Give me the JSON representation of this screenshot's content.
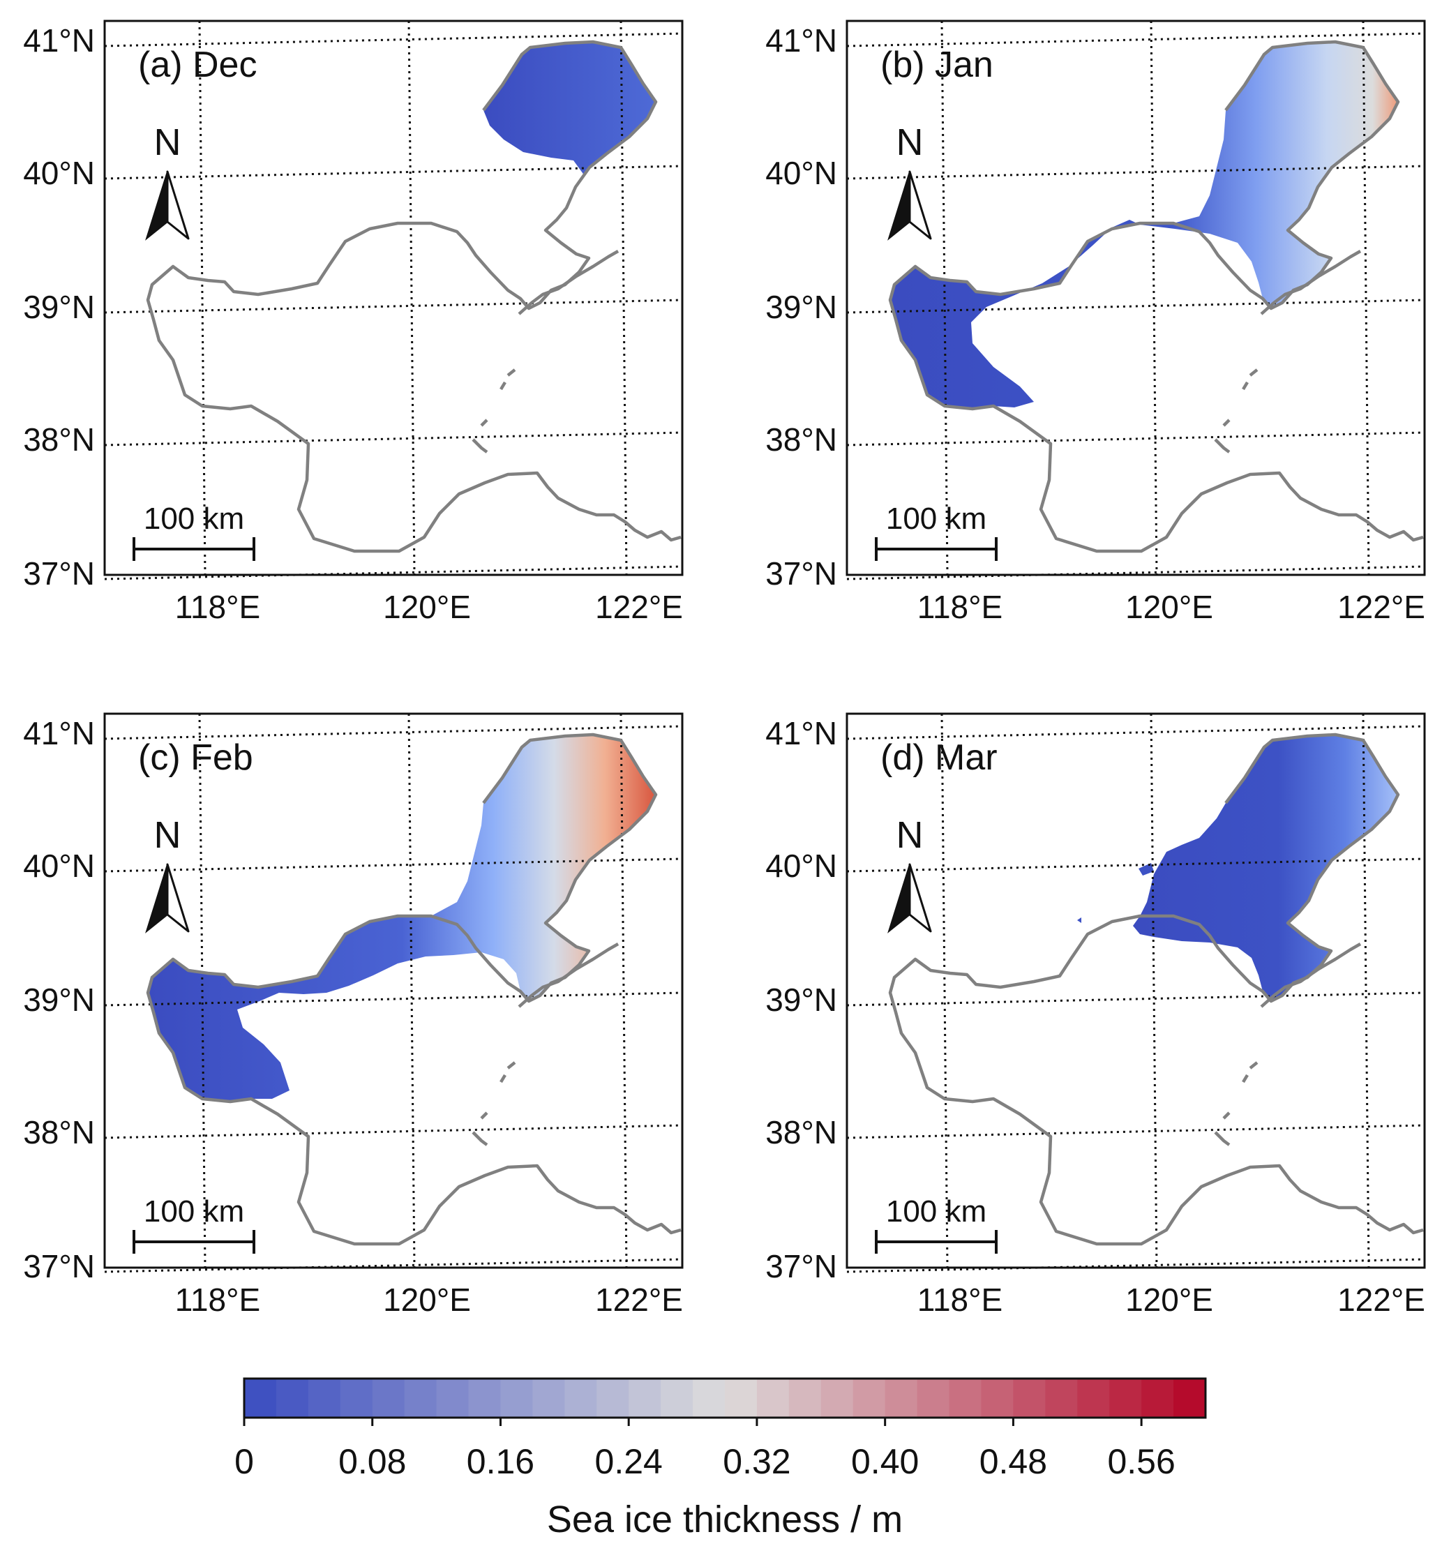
{
  "figure": {
    "colorbar": {
      "title": "Sea ice thickness / m",
      "ticks": [
        "0",
        "0.08",
        "0.16",
        "0.24",
        "0.32",
        "0.40",
        "0.48",
        "0.56"
      ],
      "min": 0,
      "max": 0.6,
      "step": 0.02,
      "colors_low_mid_high": [
        "#3a4cc0",
        "#dddcdc",
        "#b40426"
      ]
    },
    "lat_labels": [
      "41°N",
      "40°N",
      "39°N",
      "38°N",
      "37°N"
    ],
    "lon_labels": [
      "118°E",
      "120°E",
      "122°E"
    ],
    "north_arrow_label": "N",
    "scale_bar_label": "100 km",
    "coast_color": "#808080",
    "panels": [
      {
        "label": "(a) Dec"
      },
      {
        "label": "(b) Jan"
      },
      {
        "label": "(c) Feb"
      },
      {
        "label": "(d) Mar"
      }
    ]
  }
}
